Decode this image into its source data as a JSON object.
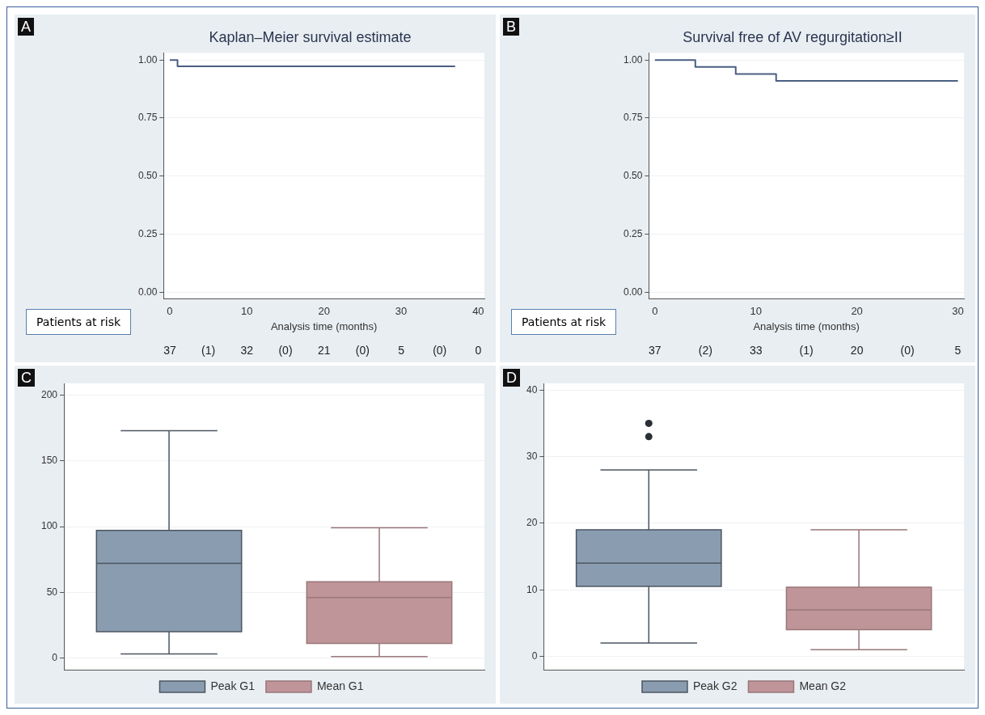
{
  "chart_data": [
    {
      "type": "step",
      "title": "Kaplan–Meier survival estimate",
      "xlabel": "Analysis time (months)",
      "series": [
        {
          "color": "#4a5f82",
          "x": [
            0,
            1,
            37
          ],
          "values": [
            1,
            0.973,
            0.973
          ]
        }
      ],
      "xlim": [
        -0.8,
        40.8
      ],
      "xticks": [
        0,
        10,
        20,
        30,
        40
      ],
      "ylim": [
        -0.03,
        1.03
      ],
      "yticks": [
        {
          "value": 0,
          "label": "0.00"
        },
        {
          "value": 0.25,
          "label": "0.25"
        },
        {
          "value": 0.5,
          "label": "0.50"
        },
        {
          "value": 0.75,
          "label": "0.75"
        },
        {
          "value": 1,
          "label": "1.00"
        }
      ],
      "grid": "y",
      "legend": false,
      "annotations": [
        "A",
        "Patients at risk",
        "37",
        "(1)",
        "32",
        "(0)",
        "21",
        "(0)",
        "5",
        "(0)",
        "0"
      ]
    },
    {
      "type": "step",
      "title": "Survival free of AV regurgitation≥II",
      "xlabel": "Analysis time (months)",
      "series": [
        {
          "color": "#4a5f82",
          "x": [
            0,
            4,
            8,
            12,
            30
          ],
          "values": [
            1,
            0.97,
            0.94,
            0.91,
            0.91
          ]
        }
      ],
      "xlim": [
        -0.6,
        30.6
      ],
      "xticks": [
        0,
        10,
        20,
        30
      ],
      "ylim": [
        -0.03,
        1.03
      ],
      "yticks": [
        {
          "value": 0,
          "label": "0.00"
        },
        {
          "value": 0.25,
          "label": "0.25"
        },
        {
          "value": 0.5,
          "label": "0.50"
        },
        {
          "value": 0.75,
          "label": "0.75"
        },
        {
          "value": 1,
          "label": "1.00"
        }
      ],
      "grid": "y",
      "legend": false,
      "annotations": [
        "B",
        "Patients at risk",
        "37",
        "(2)",
        "33",
        "(1)",
        "20",
        "(0)",
        "5"
      ]
    },
    {
      "type": "box",
      "categories": [
        null,
        null
      ],
      "series": [
        {
          "name": "Peak G1",
          "color": "#8a9cb0",
          "boxes": [
            {
              "low": 3,
              "q1": 20,
              "median": 72,
              "q3": 97,
              "high": 173
            },
            null
          ]
        },
        {
          "name": "Mean G1",
          "color": "#bf9599",
          "boxes": [
            null,
            {
              "low": 1,
              "q1": 11,
              "median": 46,
              "q3": 58,
              "high": 99
            }
          ]
        }
      ],
      "ylim": [
        -9,
        209
      ],
      "yticks": [
        0,
        50,
        100,
        150,
        200
      ],
      "grid": "y",
      "legend": "bottom",
      "tick_labels": "y",
      "annotations": [
        "C"
      ]
    },
    {
      "type": "box",
      "categories": [
        null,
        null
      ],
      "series": [
        {
          "name": "Peak G2",
          "color": "#8a9cb0",
          "boxes": [
            {
              "low": 2,
              "q1": 10.5,
              "median": 14,
              "q3": 19,
              "high": 28,
              "outliers": [
                33,
                35
              ]
            },
            null
          ]
        },
        {
          "name": "Mean G2",
          "color": "#bf9599",
          "boxes": [
            null,
            {
              "low": 1,
              "q1": 4,
              "median": 7,
              "q3": 10.4,
              "high": 19
            }
          ]
        }
      ],
      "ylim": [
        -2,
        41
      ],
      "yticks": [
        0,
        10,
        20,
        30,
        40
      ],
      "grid": "y",
      "legend": "bottom",
      "tick_labels": "y",
      "annotations": [
        "D"
      ]
    }
  ]
}
